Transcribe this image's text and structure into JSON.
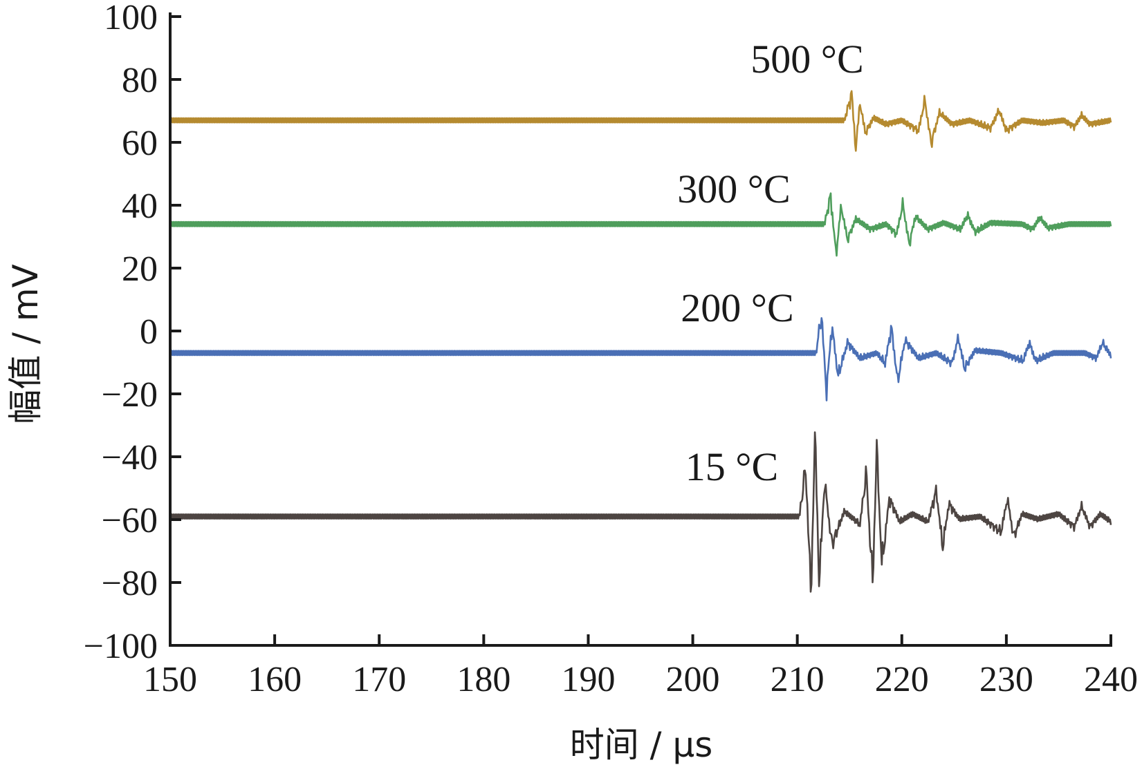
{
  "chart_data": {
    "type": "line",
    "xlabel": "时间 / μs",
    "ylabel": "幅值 / mV",
    "xlim": [
      150,
      240
    ],
    "ylim": [
      -100,
      100
    ],
    "x_ticks": [
      "150",
      "160",
      "170",
      "180",
      "190",
      "200",
      "210",
      "220",
      "230",
      "240"
    ],
    "y_ticks": [
      "100",
      "80",
      "60",
      "40",
      "20",
      "0",
      "−20",
      "−40",
      "−60",
      "−80",
      "−100"
    ],
    "grid": false,
    "series": [
      {
        "name": "500 °C",
        "color": "#b58a2f",
        "baseline": 67,
        "points": [
          [
            150,
            67
          ],
          [
            214.5,
            67
          ],
          [
            215.2,
            77
          ],
          [
            215.6,
            56
          ],
          [
            216,
            74
          ],
          [
            216.5,
            62
          ],
          [
            217.3,
            68
          ],
          [
            218.5,
            65.5
          ],
          [
            220,
            67
          ],
          [
            221.6,
            63
          ],
          [
            222.2,
            75
          ],
          [
            222.8,
            58
          ],
          [
            223.6,
            70
          ],
          [
            224.8,
            65.5
          ],
          [
            226.5,
            67
          ],
          [
            228.5,
            64
          ],
          [
            229.3,
            71
          ],
          [
            230,
            63
          ],
          [
            231.5,
            67
          ],
          [
            233.5,
            66
          ],
          [
            235.5,
            67
          ],
          [
            236.5,
            64.5
          ],
          [
            237.2,
            69
          ],
          [
            238,
            65.5
          ],
          [
            240,
            67
          ]
        ]
      },
      {
        "name": "300 °C",
        "color": "#4f9e5c",
        "baseline": 34,
        "points": [
          [
            150,
            34
          ],
          [
            212.6,
            34
          ],
          [
            213.2,
            45
          ],
          [
            213.7,
            22
          ],
          [
            214.2,
            41
          ],
          [
            214.8,
            28
          ],
          [
            215.6,
            36
          ],
          [
            217,
            32
          ],
          [
            218.5,
            34
          ],
          [
            219.5,
            30
          ],
          [
            220.1,
            42
          ],
          [
            220.7,
            26
          ],
          [
            221.3,
            37
          ],
          [
            222.5,
            32
          ],
          [
            224,
            34.5
          ],
          [
            225.6,
            32
          ],
          [
            226.3,
            37.5
          ],
          [
            227,
            31
          ],
          [
            228.5,
            34.5
          ],
          [
            231.5,
            34
          ],
          [
            232.5,
            32
          ],
          [
            233.2,
            36.5
          ],
          [
            234,
            32.5
          ],
          [
            236,
            34
          ],
          [
            240,
            34
          ]
        ]
      },
      {
        "name": "200 °C",
        "color": "#4a6fb5",
        "baseline": -7,
        "points": [
          [
            150,
            -7
          ],
          [
            211.8,
            -7
          ],
          [
            212.3,
            8
          ],
          [
            212.8,
            -22
          ],
          [
            213.3,
            4
          ],
          [
            213.9,
            -16
          ],
          [
            214.8,
            -3
          ],
          [
            216,
            -9
          ],
          [
            217.6,
            -7
          ],
          [
            218.4,
            -11
          ],
          [
            219,
            3
          ],
          [
            219.6,
            -18
          ],
          [
            220.3,
            -2
          ],
          [
            221.6,
            -9
          ],
          [
            223.3,
            -7
          ],
          [
            224.8,
            -11
          ],
          [
            225.4,
            -1
          ],
          [
            226,
            -13
          ],
          [
            227,
            -6
          ],
          [
            229.5,
            -7
          ],
          [
            231.6,
            -10
          ],
          [
            232.2,
            -3
          ],
          [
            232.8,
            -10
          ],
          [
            234.5,
            -7
          ],
          [
            237.5,
            -7
          ],
          [
            238.6,
            -9
          ],
          [
            239.2,
            -3
          ],
          [
            240,
            -8
          ]
        ]
      },
      {
        "name": "15 °C",
        "color": "#4d4542",
        "baseline": -59,
        "points": [
          [
            150,
            -59
          ],
          [
            210.2,
            -59
          ],
          [
            210.8,
            -40
          ],
          [
            211.3,
            -89
          ],
          [
            211.7,
            -28
          ],
          [
            212.1,
            -85
          ],
          [
            212.6,
            -45
          ],
          [
            213.3,
            -70
          ],
          [
            214.5,
            -57
          ],
          [
            216,
            -62
          ],
          [
            216.6,
            -42
          ],
          [
            217.2,
            -85
          ],
          [
            217.6,
            -33
          ],
          [
            218.1,
            -78
          ],
          [
            218.8,
            -52
          ],
          [
            219.8,
            -61
          ],
          [
            221,
            -58
          ],
          [
            222.5,
            -61
          ],
          [
            223.3,
            -49
          ],
          [
            223.9,
            -71
          ],
          [
            224.5,
            -54
          ],
          [
            225.5,
            -60
          ],
          [
            227.5,
            -59
          ],
          [
            229.5,
            -65
          ],
          [
            230.1,
            -52
          ],
          [
            230.7,
            -67
          ],
          [
            231.5,
            -58
          ],
          [
            233,
            -60
          ],
          [
            235,
            -58
          ],
          [
            236.5,
            -63
          ],
          [
            237.2,
            -55
          ],
          [
            238,
            -63
          ],
          [
            239,
            -58
          ],
          [
            240,
            -61
          ]
        ]
      }
    ]
  }
}
